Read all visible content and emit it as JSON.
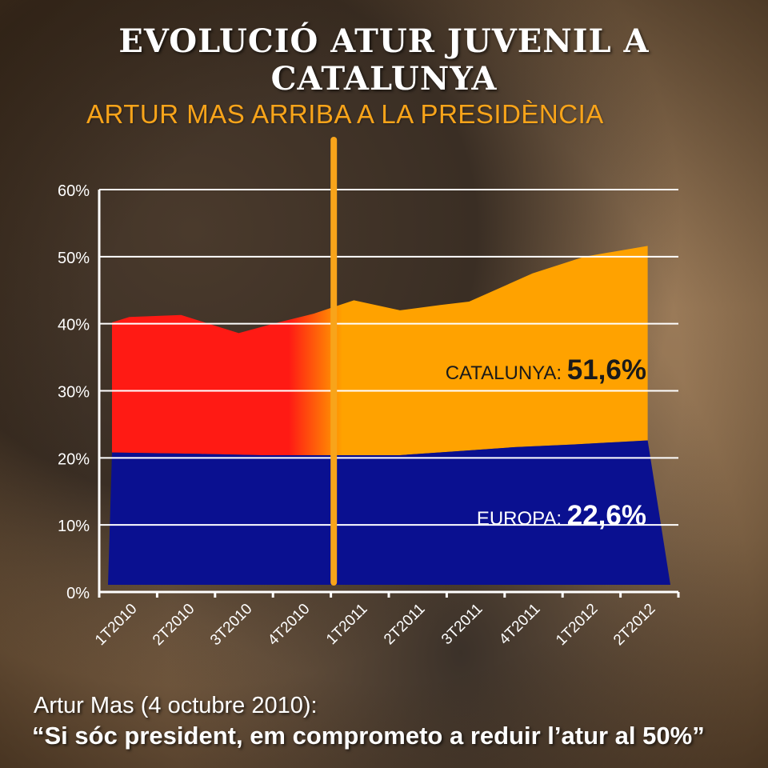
{
  "title": "EVOLUCIÓ ATUR JUVENIL A CATALUNYA",
  "quote": {
    "attribution": "Artur Mas (4 octubre 2010):",
    "text": "“Si sóc president, em comprometo a reduir l’atur al 50%”"
  },
  "colors": {
    "catalunya_before": "#ff1a14",
    "catalunya_after": "#ffa200",
    "europa": "#0a1090",
    "marker": "#f8a41a",
    "axis": "#ffffff"
  },
  "chart_data": {
    "type": "area",
    "categories": [
      "1T2010",
      "2T2010",
      "3T2010",
      "4T2010",
      "1T2011",
      "2T2011",
      "3T2011",
      "4T2011",
      "1T2012",
      "2T2012"
    ],
    "ylim": [
      0,
      60
    ],
    "yticks": [
      "0%",
      "10%",
      "20%",
      "30%",
      "40%",
      "50%",
      "60%"
    ],
    "grid": true,
    "series": [
      {
        "name": "CATALUNYA",
        "values": [
          40.2,
          41.0,
          41.3,
          38.6,
          40.0,
          41.5,
          43.5,
          42.0,
          42.8,
          43.3,
          47.5,
          50.0,
          51.6
        ],
        "x": [
          0,
          0.3,
          1.2,
          2.2,
          2.8,
          3.5,
          4.2,
          5.0,
          5.7,
          6.2,
          7.3,
          8.2,
          9.3
        ],
        "label_prefix": "CATALUNYA:",
        "label_value": "51,6%"
      },
      {
        "name": "EUROPA",
        "values": [
          20.8,
          20.6,
          20.4,
          20.4,
          20.4,
          21.0,
          21.6,
          22.0,
          22.6
        ],
        "x": [
          0,
          1.5,
          2.6,
          3.6,
          5.0,
          6.0,
          7.0,
          8.0,
          9.3
        ],
        "label_prefix": "EUROPA:",
        "label_value": "22,6%"
      }
    ],
    "annotations": [
      {
        "text": "ARTUR MAS ARRIBA A LA PRESIDÈNCIA",
        "at_x": 3.85
      }
    ]
  }
}
